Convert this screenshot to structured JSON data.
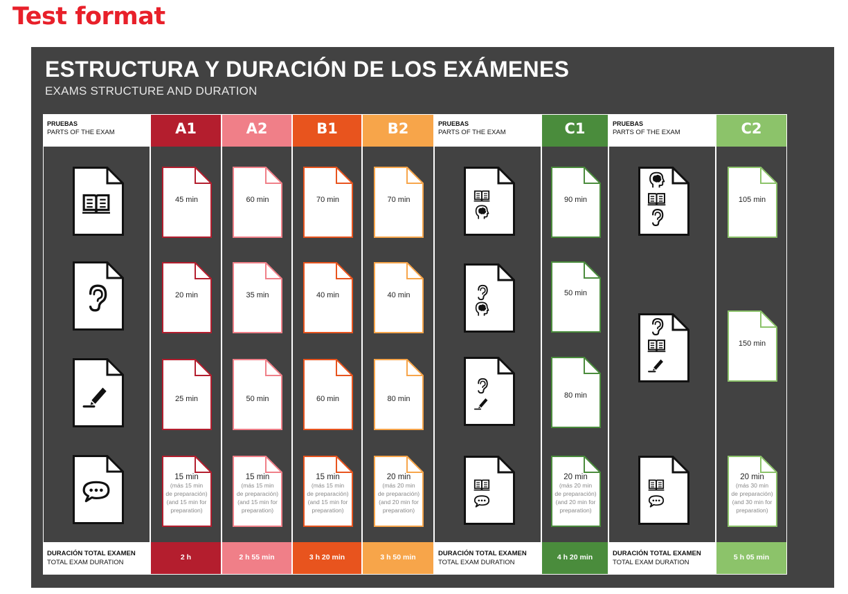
{
  "page_title": "Test format",
  "board": {
    "title": "ESTRUCTURA Y DURACIÓN DE LOS EXÁMENES",
    "subtitle": "EXAMS STRUCTURE AND DURATION"
  },
  "parts_header": {
    "es": "PRUEBAS",
    "en": "PARTS OF THE EXAM"
  },
  "total_footer": {
    "es": "DURACIÓN TOTAL EXAMEN",
    "en": "TOTAL EXAM DURATION"
  },
  "colors": {
    "A1": "#b41e2e",
    "A2": "#f07f88",
    "B1": "#e8541e",
    "B2": "#f7a54a",
    "C1": "#4a8c3c",
    "C2": "#8cc36a",
    "background": "#424242",
    "title_red": "#e8202a"
  },
  "part_icons_a1_b2": [
    "book-icon",
    "ear-icon",
    "pen-icon",
    "speech-bubble-icon"
  ],
  "part_icons_c1": [
    [
      "book-icon",
      "head-icon"
    ],
    [
      "ear-icon",
      "head-icon"
    ],
    [
      "ear-icon",
      "pen-icon"
    ],
    [
      "book-icon",
      "speech-bubble-icon"
    ]
  ],
  "part_icons_c2": [
    [
      "head-icon",
      "book-icon",
      "ear-icon"
    ],
    [
      "ear-icon",
      "book-icon",
      "pen-icon"
    ],
    [
      "book-icon",
      "speech-bubble-icon"
    ]
  ],
  "levels": {
    "A1": {
      "label": "A1",
      "durations": [
        "45 min",
        "20 min",
        "25 min",
        "15 min"
      ],
      "prep": [
        "(más 15 min",
        "de preparación)",
        "(and 15 min for",
        "preparation)"
      ],
      "total": "2 h"
    },
    "A2": {
      "label": "A2",
      "durations": [
        "60 min",
        "35 min",
        "50 min",
        "15 min"
      ],
      "prep": [
        "(más 15 min",
        "de preparación)",
        "(and 15 min for",
        "preparation)"
      ],
      "total": "2 h 55 min"
    },
    "B1": {
      "label": "B1",
      "durations": [
        "70  min",
        "40 min",
        "60 min",
        "15 min"
      ],
      "prep": [
        "(más 15 min",
        "de preparación)",
        "(and 15 min for",
        "preparation)"
      ],
      "total": "3 h 20 min"
    },
    "B2": {
      "label": "B2",
      "durations": [
        "70 min",
        "40 min",
        "80 min",
        "20 min"
      ],
      "prep": [
        "(más 20 min",
        "de preparación)",
        "(and 20 min for",
        "preparation)"
      ],
      "total": "3 h 50 min"
    },
    "C1": {
      "label": "C1",
      "durations": [
        "90 min",
        "50 min",
        "80 min",
        "20 min"
      ],
      "prep": [
        "(más 20 min",
        "de preparación)",
        "(and 20 min for",
        "preparation)"
      ],
      "total": "4 h 20 min"
    },
    "C2": {
      "label": "C2",
      "durations": [
        "105 min",
        "150 min",
        "20 min"
      ],
      "prep": [
        "(más 30 min",
        "de preparación)",
        "(and 30 min for",
        "preparation)"
      ],
      "total": "5 h 05 min"
    }
  }
}
